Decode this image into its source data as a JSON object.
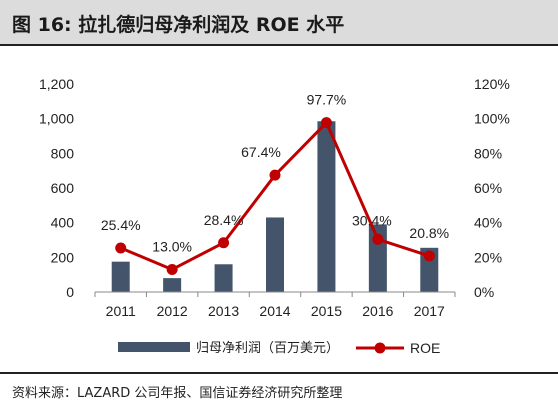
{
  "title": "图 16: 拉扎德归母净利润及 ROE 水平",
  "source": "资料来源：LAZARD 公司年报、国信证券经济研究所整理",
  "colors": {
    "bar": "#44546a",
    "line": "#c00000",
    "axis": "#888888",
    "text": "#222222"
  },
  "chart_data": {
    "type": "bar",
    "categories": [
      "2011",
      "2012",
      "2013",
      "2014",
      "2015",
      "2016",
      "2017"
    ],
    "series": [
      {
        "name": "归母净利润（百万美元）",
        "type": "bar",
        "axis": "left",
        "values": [
          175,
          80,
          160,
          430,
          985,
          390,
          255
        ]
      },
      {
        "name": "ROE",
        "type": "line",
        "axis": "right",
        "values": [
          25.4,
          13.0,
          28.4,
          67.4,
          97.7,
          30.4,
          20.8
        ],
        "labels": [
          "25.4%",
          "13.0%",
          "28.4%",
          "67.4%",
          "97.7%",
          "30.4%",
          "20.8%"
        ]
      }
    ],
    "y_left": {
      "ylim": [
        0,
        1200
      ],
      "ticks": [
        "0",
        "200",
        "400",
        "600",
        "800",
        "1,000",
        "1,200"
      ]
    },
    "y_right": {
      "ylim": [
        0,
        120
      ],
      "ticks": [
        "0%",
        "20%",
        "40%",
        "60%",
        "80%",
        "100%",
        "120%"
      ]
    },
    "grid": false,
    "legend_position": "bottom"
  }
}
